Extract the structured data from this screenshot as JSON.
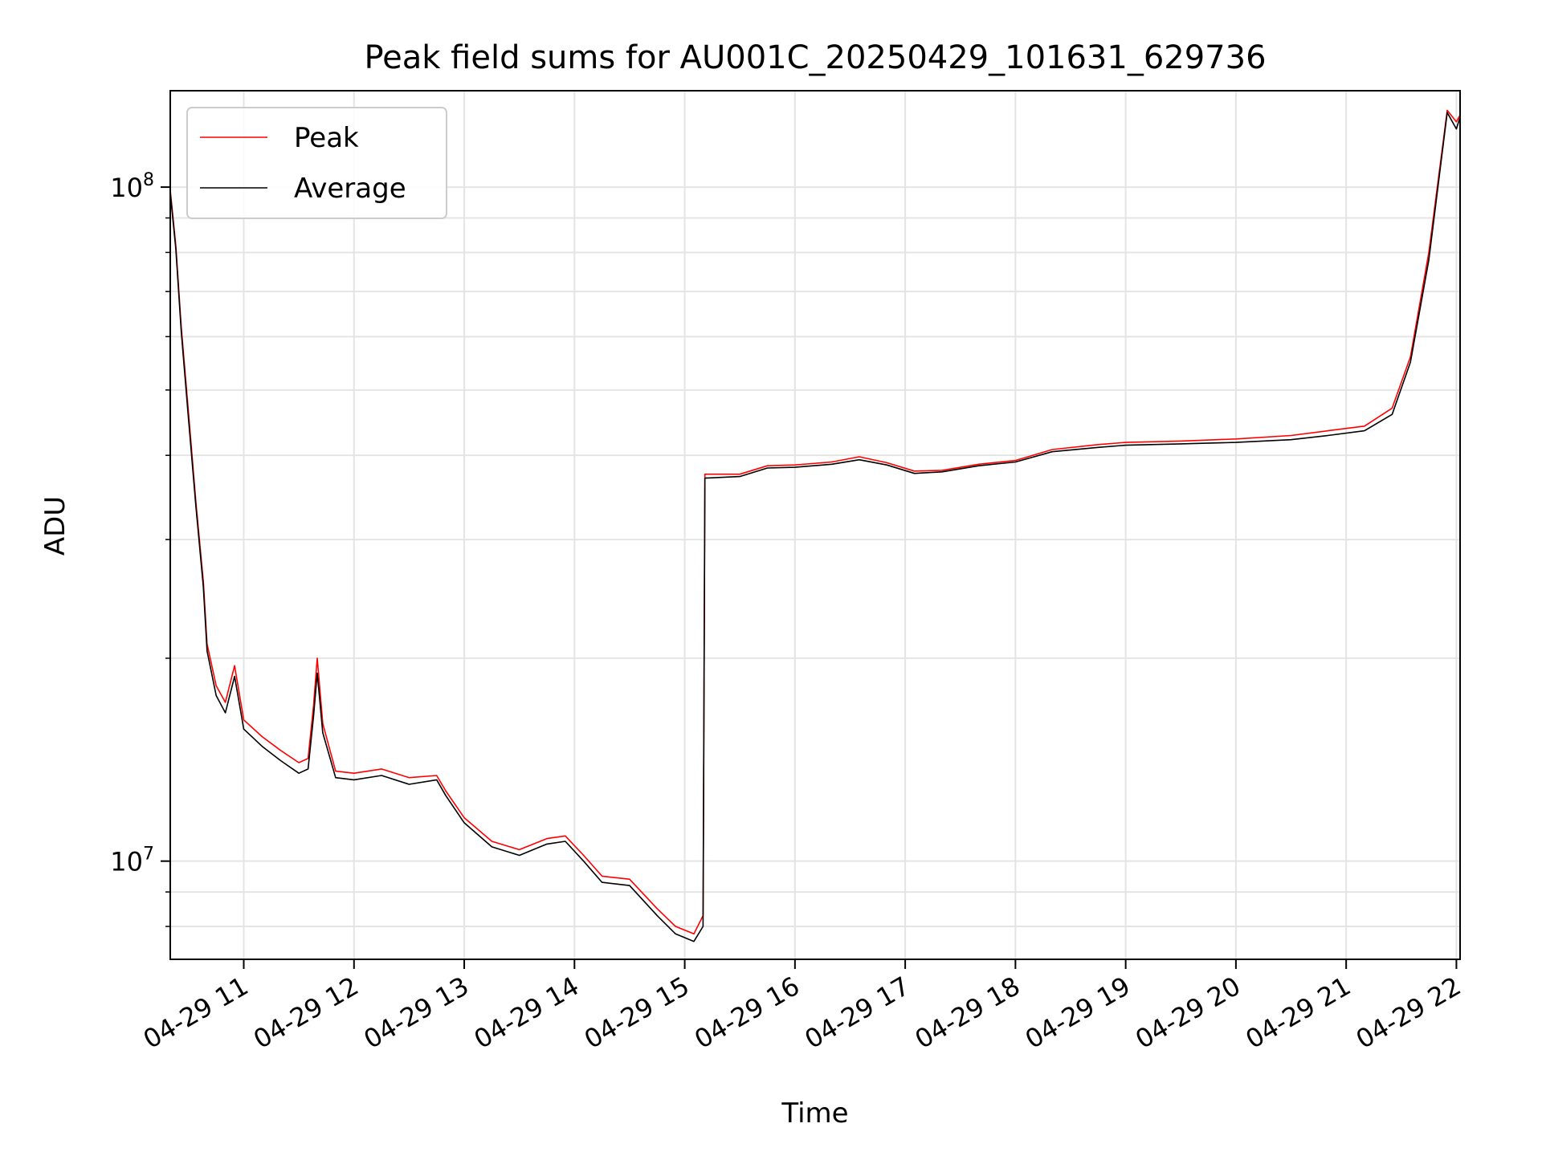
{
  "chart_data": {
    "type": "line",
    "title": "Peak field sums for AU001C_20250429_101631_629736",
    "xlabel": "Time",
    "ylabel": "ADU",
    "xaxis": {
      "kind": "time",
      "range": [
        "2025-04-29T10:20",
        "2025-04-29T22:02"
      ],
      "ticks": [
        {
          "label": "04-29 11",
          "value": "2025-04-29T11:00"
        },
        {
          "label": "04-29 12",
          "value": "2025-04-29T12:00"
        },
        {
          "label": "04-29 13",
          "value": "2025-04-29T13:00"
        },
        {
          "label": "04-29 14",
          "value": "2025-04-29T14:00"
        },
        {
          "label": "04-29 15",
          "value": "2025-04-29T15:00"
        },
        {
          "label": "04-29 16",
          "value": "2025-04-29T16:00"
        },
        {
          "label": "04-29 17",
          "value": "2025-04-29T17:00"
        },
        {
          "label": "04-29 18",
          "value": "2025-04-29T18:00"
        },
        {
          "label": "04-29 19",
          "value": "2025-04-29T19:00"
        },
        {
          "label": "04-29 20",
          "value": "2025-04-29T20:00"
        },
        {
          "label": "04-29 21",
          "value": "2025-04-29T21:00"
        },
        {
          "label": "04-29 22",
          "value": "2025-04-29T22:00"
        }
      ]
    },
    "yaxis": {
      "scale": "log",
      "range": [
        7150000,
        139000000
      ],
      "major_ticks": [
        {
          "value": 10000000,
          "base": "10",
          "exp": "7"
        },
        {
          "value": 100000000,
          "base": "10",
          "exp": "8"
        }
      ],
      "minor_ticks": [
        8000000,
        9000000,
        20000000,
        30000000,
        40000000,
        50000000,
        60000000,
        70000000,
        80000000,
        90000000
      ]
    },
    "grid": true,
    "legend": {
      "position": "top-left"
    },
    "series": [
      {
        "name": "Peak",
        "color": "#ff0000",
        "points": [
          [
            "2025-04-29T10:20",
            99000000
          ],
          [
            "2025-04-29T10:23",
            82000000
          ],
          [
            "2025-04-29T10:26",
            62000000
          ],
          [
            "2025-04-29T10:30",
            46000000
          ],
          [
            "2025-04-29T10:34",
            34000000
          ],
          [
            "2025-04-29T10:38",
            26000000
          ],
          [
            "2025-04-29T10:40",
            21000000
          ],
          [
            "2025-04-29T10:45",
            18200000
          ],
          [
            "2025-04-29T10:50",
            17200000
          ],
          [
            "2025-04-29T10:55",
            19500000
          ],
          [
            "2025-04-29T11:00",
            16200000
          ],
          [
            "2025-04-29T11:10",
            15300000
          ],
          [
            "2025-04-29T11:20",
            14600000
          ],
          [
            "2025-04-29T11:30",
            14000000
          ],
          [
            "2025-04-29T11:35",
            14200000
          ],
          [
            "2025-04-29T11:38",
            17000000
          ],
          [
            "2025-04-29T11:40",
            20000000
          ],
          [
            "2025-04-29T11:43",
            16000000
          ],
          [
            "2025-04-29T11:50",
            13600000
          ],
          [
            "2025-04-29T12:00",
            13500000
          ],
          [
            "2025-04-29T12:15",
            13700000
          ],
          [
            "2025-04-29T12:30",
            13300000
          ],
          [
            "2025-04-29T12:45",
            13400000
          ],
          [
            "2025-04-29T12:50",
            12700000
          ],
          [
            "2025-04-29T13:00",
            11600000
          ],
          [
            "2025-04-29T13:15",
            10700000
          ],
          [
            "2025-04-29T13:30",
            10400000
          ],
          [
            "2025-04-29T13:45",
            10800000
          ],
          [
            "2025-04-29T13:55",
            10900000
          ],
          [
            "2025-04-29T14:05",
            10200000
          ],
          [
            "2025-04-29T14:15",
            9500000
          ],
          [
            "2025-04-29T14:30",
            9400000
          ],
          [
            "2025-04-29T14:45",
            8500000
          ],
          [
            "2025-04-29T14:55",
            8000000
          ],
          [
            "2025-04-29T15:05",
            7800000
          ],
          [
            "2025-04-29T15:10",
            8300000
          ],
          [
            "2025-04-29T15:11",
            37500000
          ],
          [
            "2025-04-29T15:30",
            37500000
          ],
          [
            "2025-04-29T15:45",
            38600000
          ],
          [
            "2025-04-29T16:00",
            38700000
          ],
          [
            "2025-04-29T16:20",
            39100000
          ],
          [
            "2025-04-29T16:35",
            39800000
          ],
          [
            "2025-04-29T16:50",
            39000000
          ],
          [
            "2025-04-29T17:05",
            37900000
          ],
          [
            "2025-04-29T17:20",
            38000000
          ],
          [
            "2025-04-29T17:40",
            38800000
          ],
          [
            "2025-04-29T18:00",
            39300000
          ],
          [
            "2025-04-29T18:20",
            40800000
          ],
          [
            "2025-04-29T18:45",
            41500000
          ],
          [
            "2025-04-29T19:00",
            41800000
          ],
          [
            "2025-04-29T19:30",
            42000000
          ],
          [
            "2025-04-29T20:00",
            42300000
          ],
          [
            "2025-04-29T20:30",
            42800000
          ],
          [
            "2025-04-29T20:50",
            43500000
          ],
          [
            "2025-04-29T21:10",
            44200000
          ],
          [
            "2025-04-29T21:25",
            47000000
          ],
          [
            "2025-04-29T21:35",
            56000000
          ],
          [
            "2025-04-29T21:45",
            80000000
          ],
          [
            "2025-04-29T21:55",
            130000000
          ],
          [
            "2025-04-29T22:00",
            125000000
          ],
          [
            "2025-04-29T22:02",
            128000000
          ]
        ]
      },
      {
        "name": "Average",
        "color": "#000000",
        "points": [
          [
            "2025-04-29T10:20",
            98000000
          ],
          [
            "2025-04-29T10:23",
            81000000
          ],
          [
            "2025-04-29T10:26",
            61000000
          ],
          [
            "2025-04-29T10:30",
            45000000
          ],
          [
            "2025-04-29T10:34",
            33500000
          ],
          [
            "2025-04-29T10:38",
            25500000
          ],
          [
            "2025-04-29T10:40",
            20500000
          ],
          [
            "2025-04-29T10:45",
            17600000
          ],
          [
            "2025-04-29T10:50",
            16600000
          ],
          [
            "2025-04-29T10:55",
            18800000
          ],
          [
            "2025-04-29T11:00",
            15700000
          ],
          [
            "2025-04-29T11:10",
            14800000
          ],
          [
            "2025-04-29T11:20",
            14100000
          ],
          [
            "2025-04-29T11:30",
            13500000
          ],
          [
            "2025-04-29T11:35",
            13700000
          ],
          [
            "2025-04-29T11:38",
            16400000
          ],
          [
            "2025-04-29T11:40",
            19000000
          ],
          [
            "2025-04-29T11:43",
            15500000
          ],
          [
            "2025-04-29T11:50",
            13300000
          ],
          [
            "2025-04-29T12:00",
            13200000
          ],
          [
            "2025-04-29T12:15",
            13400000
          ],
          [
            "2025-04-29T12:30",
            13000000
          ],
          [
            "2025-04-29T12:45",
            13200000
          ],
          [
            "2025-04-29T12:50",
            12500000
          ],
          [
            "2025-04-29T13:00",
            11400000
          ],
          [
            "2025-04-29T13:15",
            10500000
          ],
          [
            "2025-04-29T13:30",
            10200000
          ],
          [
            "2025-04-29T13:45",
            10600000
          ],
          [
            "2025-04-29T13:55",
            10700000
          ],
          [
            "2025-04-29T14:05",
            10000000
          ],
          [
            "2025-04-29T14:15",
            9300000
          ],
          [
            "2025-04-29T14:30",
            9200000
          ],
          [
            "2025-04-29T14:45",
            8300000
          ],
          [
            "2025-04-29T14:55",
            7800000
          ],
          [
            "2025-04-29T15:05",
            7600000
          ],
          [
            "2025-04-29T15:10",
            8000000
          ],
          [
            "2025-04-29T15:11",
            37000000
          ],
          [
            "2025-04-29T15:30",
            37200000
          ],
          [
            "2025-04-29T15:45",
            38300000
          ],
          [
            "2025-04-29T16:00",
            38400000
          ],
          [
            "2025-04-29T16:20",
            38800000
          ],
          [
            "2025-04-29T16:35",
            39400000
          ],
          [
            "2025-04-29T16:50",
            38700000
          ],
          [
            "2025-04-29T17:05",
            37600000
          ],
          [
            "2025-04-29T17:20",
            37800000
          ],
          [
            "2025-04-29T17:40",
            38600000
          ],
          [
            "2025-04-29T18:00",
            39100000
          ],
          [
            "2025-04-29T18:20",
            40500000
          ],
          [
            "2025-04-29T18:45",
            41100000
          ],
          [
            "2025-04-29T19:00",
            41400000
          ],
          [
            "2025-04-29T19:30",
            41600000
          ],
          [
            "2025-04-29T20:00",
            41800000
          ],
          [
            "2025-04-29T20:30",
            42200000
          ],
          [
            "2025-04-29T20:50",
            42800000
          ],
          [
            "2025-04-29T21:10",
            43500000
          ],
          [
            "2025-04-29T21:25",
            46000000
          ],
          [
            "2025-04-29T21:35",
            55000000
          ],
          [
            "2025-04-29T21:45",
            78000000
          ],
          [
            "2025-04-29T21:55",
            129000000
          ],
          [
            "2025-04-29T22:00",
            122000000
          ],
          [
            "2025-04-29T22:02",
            127000000
          ]
        ]
      }
    ]
  }
}
